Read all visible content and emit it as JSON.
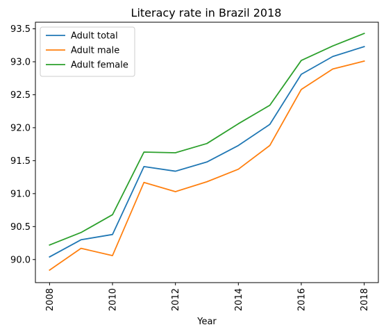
{
  "chart_data": {
    "type": "line",
    "title": "Literacy rate in Brazil 2018",
    "xlabel": "Year",
    "ylabel": "",
    "x": [
      2008,
      2009,
      2010,
      2011,
      2012,
      2013,
      2014,
      2015,
      2016,
      2017,
      2018
    ],
    "xlim": [
      2007.55,
      2018.45
    ],
    "ylim": [
      89.65,
      93.6
    ],
    "xticks": [
      2008,
      2010,
      2012,
      2014,
      2016,
      2018
    ],
    "yticks": [
      "90.0",
      "90.5",
      "91.0",
      "91.5",
      "92.0",
      "92.5",
      "93.0",
      "93.5"
    ],
    "grid": false,
    "legend_position": "top-left",
    "series": [
      {
        "name": "Adult total",
        "color": "#1f77b4",
        "values": [
          90.04,
          90.3,
          90.38,
          91.41,
          91.34,
          91.48,
          91.73,
          92.05,
          92.81,
          93.08,
          93.23
        ]
      },
      {
        "name": "Adult male",
        "color": "#ff7f0e",
        "values": [
          89.84,
          90.17,
          90.06,
          91.17,
          91.03,
          91.18,
          91.37,
          91.73,
          92.58,
          92.89,
          93.01
        ]
      },
      {
        "name": "Adult female",
        "color": "#2ca02c",
        "values": [
          90.22,
          90.41,
          90.68,
          91.63,
          91.62,
          91.76,
          92.06,
          92.34,
          93.02,
          93.24,
          93.43
        ]
      }
    ]
  }
}
